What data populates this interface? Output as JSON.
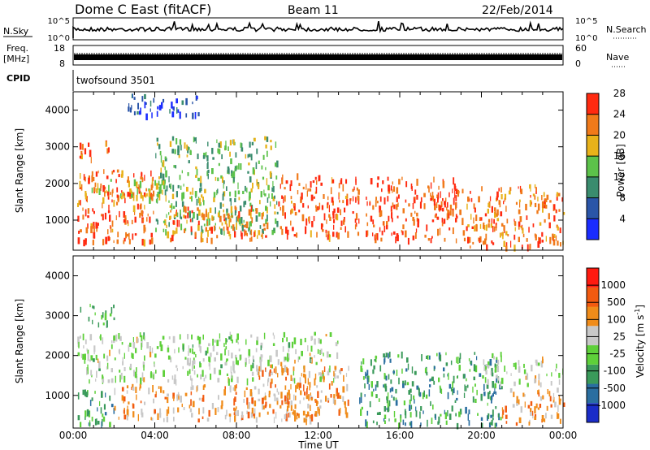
{
  "header": {
    "station": "Dome C East (fitACF)",
    "beam": "Beam 11",
    "date": "22/Feb/2014"
  },
  "top_panels": {
    "nsky_label": "N.Sky",
    "nsky_ticks": [
      "10^5",
      "10^0"
    ],
    "nsearch_label": "N.Search",
    "nsearch_ticks": [
      "10^5",
      "10^0"
    ],
    "freq_label": "Freq.",
    "freq_unit": "[MHz]",
    "freq_ticks": [
      "18",
      "8"
    ],
    "nave_label": "Nave",
    "nave_ticks": [
      "60",
      "0"
    ],
    "cpid_label": "CPID",
    "cpid_value": "twofsound 3501"
  },
  "chart_data": [
    {
      "type": "heatmap",
      "name": "power",
      "ylabel": "Slant Range [km]",
      "yticks": [
        1000,
        2000,
        3000,
        4000
      ],
      "ylim": [
        180,
        4500
      ],
      "xlim": [
        0,
        24
      ],
      "colorbar": {
        "label": "Power [dB]",
        "ticks": [
          "4",
          "8",
          "12",
          "16",
          "20",
          "24",
          "28"
        ],
        "colors": [
          "#1a2cff",
          "#2a55a8",
          "#3a8c6e",
          "#5cc24a",
          "#e8b21a",
          "#f07a1a",
          "#ff2a10"
        ]
      },
      "regions": [
        {
          "t0": 0.3,
          "t1": 1.2,
          "r0": 2700,
          "r1": 3200,
          "level": 5.3
        },
        {
          "t0": 1.5,
          "t1": 2.0,
          "r0": 2800,
          "r1": 3200,
          "level": 4.8
        },
        {
          "t0": 0.2,
          "t1": 4.0,
          "r0": 450,
          "r1": 2400,
          "level": 5.4
        },
        {
          "t0": 0.2,
          "t1": 4.5,
          "r0": 1600,
          "r1": 2200,
          "level": 3.9
        },
        {
          "t0": 4.0,
          "t1": 10.0,
          "r0": 700,
          "r1": 3300,
          "level": 2.8
        },
        {
          "t0": 4.5,
          "t1": 9.5,
          "r0": 500,
          "r1": 1400,
          "level": 5.2
        },
        {
          "t0": 10.0,
          "t1": 14.0,
          "r0": 600,
          "r1": 2300,
          "level": 5.5
        },
        {
          "t0": 14.3,
          "t1": 19.0,
          "r0": 500,
          "r1": 2200,
          "level": 5.6
        },
        {
          "t0": 19.0,
          "t1": 24.0,
          "r0": 300,
          "r1": 2000,
          "level": 5.1
        },
        {
          "t0": 2.6,
          "t1": 6.2,
          "r0": 3900,
          "r1": 4450,
          "level": 0.8
        }
      ]
    },
    {
      "type": "heatmap",
      "name": "velocity",
      "ylabel": "Slant Range [km]",
      "yticks": [
        1000,
        2000,
        3000,
        4000
      ],
      "ylim": [
        180,
        4500
      ],
      "xlim": [
        0,
        24
      ],
      "xlabel": "Time UT",
      "xticks": [
        "00:00",
        "04:00",
        "08:00",
        "12:00",
        "16:00",
        "20:00",
        "00:00"
      ],
      "colorbar": {
        "label": "Velocity [m s^-1]",
        "ticks": [
          "1000",
          "500",
          "100",
          "25",
          "-25",
          "-100",
          "-500",
          "-1000"
        ],
        "colors": [
          "#1a2cc8",
          "#2a6ea0",
          "#3a9a5a",
          "#5ed03a",
          "#c8c8c8",
          "#f08c1a",
          "#f25a10",
          "#ff1a10"
        ]
      },
      "regions": [
        {
          "t0": 0.3,
          "t1": 2.0,
          "r0": 2800,
          "r1": 3300,
          "level": 2.5
        },
        {
          "t0": 0.2,
          "t1": 13.0,
          "r0": 1400,
          "r1": 2600,
          "level": 3.5
        },
        {
          "t0": 0.2,
          "t1": 2.0,
          "r0": 300,
          "r1": 1200,
          "level": 2.0
        },
        {
          "t0": 2.0,
          "t1": 12.0,
          "r0": 400,
          "r1": 1300,
          "level": 4.8
        },
        {
          "t0": 9.0,
          "t1": 13.5,
          "r0": 500,
          "r1": 1800,
          "level": 5.0
        },
        {
          "t0": 14.0,
          "t1": 21.0,
          "r0": 300,
          "r1": 2100,
          "level": 2.0
        },
        {
          "t0": 21.0,
          "t1": 24.0,
          "r0": 300,
          "r1": 1200,
          "level": 5.0
        },
        {
          "t0": 20.0,
          "t1": 24.0,
          "r0": 1300,
          "r1": 2000,
          "level": 3.6
        }
      ]
    }
  ]
}
